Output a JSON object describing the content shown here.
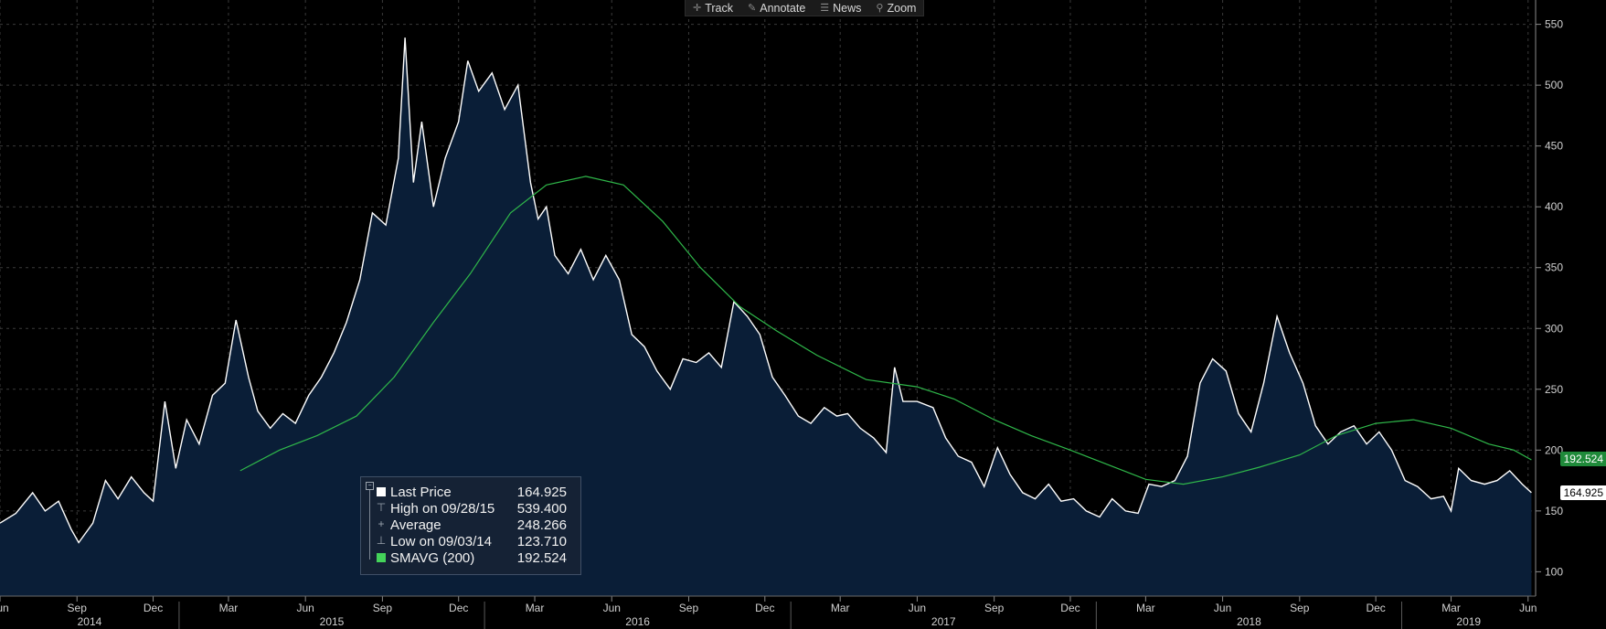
{
  "toolbar": {
    "items": [
      {
        "label": "Track",
        "icon": "crosshair-icon"
      },
      {
        "label": "Annotate",
        "icon": "pencil-icon"
      },
      {
        "label": "News",
        "icon": "news-icon"
      },
      {
        "label": "Zoom",
        "icon": "magnifier-icon"
      }
    ]
  },
  "legend": {
    "rows": [
      {
        "label": "Last Price",
        "value": "164.925",
        "mark": "white-square"
      },
      {
        "label": "High on 09/28/15",
        "value": "539.400",
        "mark": "high-glyph"
      },
      {
        "label": "Average",
        "value": "248.266",
        "mark": "average-glyph"
      },
      {
        "label": "Low on 09/03/14",
        "value": "123.710",
        "mark": "low-glyph"
      },
      {
        "label": "SMAVG (200)",
        "value": "192.524",
        "mark": "green-square"
      }
    ]
  },
  "tags": {
    "sma": {
      "value": "192.524",
      "color": "#1f8a3a"
    },
    "last": {
      "value": "164.925",
      "color": "#ffffff"
    }
  },
  "chart_data": {
    "type": "area",
    "ylim": [
      80,
      570
    ],
    "yticks": [
      100,
      150,
      200,
      250,
      300,
      350,
      400,
      450,
      500,
      550
    ],
    "grid": true,
    "x_month_labels": [
      {
        "label": "Jun",
        "date": "2014-06-01"
      },
      {
        "label": "Sep",
        "date": "2014-09-01"
      },
      {
        "label": "Dec",
        "date": "2014-12-01"
      },
      {
        "label": "Mar",
        "date": "2015-03-01"
      },
      {
        "label": "Jun",
        "date": "2015-06-01"
      },
      {
        "label": "Sep",
        "date": "2015-09-01"
      },
      {
        "label": "Dec",
        "date": "2015-12-01"
      },
      {
        "label": "Mar",
        "date": "2016-03-01"
      },
      {
        "label": "Jun",
        "date": "2016-06-01"
      },
      {
        "label": "Sep",
        "date": "2016-09-01"
      },
      {
        "label": "Dec",
        "date": "2016-12-01"
      },
      {
        "label": "Mar",
        "date": "2017-03-01"
      },
      {
        "label": "Jun",
        "date": "2017-06-01"
      },
      {
        "label": "Sep",
        "date": "2017-09-01"
      },
      {
        "label": "Dec",
        "date": "2017-12-01"
      },
      {
        "label": "Mar",
        "date": "2018-03-01"
      },
      {
        "label": "Jun",
        "date": "2018-06-01"
      },
      {
        "label": "Sep",
        "date": "2018-09-01"
      },
      {
        "label": "Dec",
        "date": "2018-12-01"
      },
      {
        "label": "Mar",
        "date": "2019-03-01"
      },
      {
        "label": "Jun",
        "date": "2019-06-01"
      }
    ],
    "x_year_labels": [
      "2014",
      "2015",
      "2016",
      "2017",
      "2018",
      "2019"
    ],
    "series": [
      {
        "name": "Last Price",
        "color": "#ffffff",
        "fill": "#0a1e37",
        "points": [
          [
            "2014-06-01",
            140
          ],
          [
            "2014-06-20",
            148
          ],
          [
            "2014-07-10",
            165
          ],
          [
            "2014-07-25",
            150
          ],
          [
            "2014-08-10",
            158
          ],
          [
            "2014-08-25",
            135
          ],
          [
            "2014-09-03",
            124
          ],
          [
            "2014-09-20",
            140
          ],
          [
            "2014-10-05",
            175
          ],
          [
            "2014-10-20",
            160
          ],
          [
            "2014-11-05",
            178
          ],
          [
            "2014-11-20",
            165
          ],
          [
            "2014-12-01",
            158
          ],
          [
            "2014-12-15",
            240
          ],
          [
            "2014-12-28",
            185
          ],
          [
            "2015-01-10",
            225
          ],
          [
            "2015-01-25",
            205
          ],
          [
            "2015-02-10",
            245
          ],
          [
            "2015-02-25",
            255
          ],
          [
            "2015-03-10",
            307
          ],
          [
            "2015-03-25",
            260
          ],
          [
            "2015-04-05",
            232
          ],
          [
            "2015-04-20",
            218
          ],
          [
            "2015-05-05",
            230
          ],
          [
            "2015-05-20",
            222
          ],
          [
            "2015-06-05",
            245
          ],
          [
            "2015-06-20",
            260
          ],
          [
            "2015-07-05",
            280
          ],
          [
            "2015-07-20",
            305
          ],
          [
            "2015-08-05",
            340
          ],
          [
            "2015-08-20",
            395
          ],
          [
            "2015-09-05",
            385
          ],
          [
            "2015-09-20",
            440
          ],
          [
            "2015-09-28",
            539
          ],
          [
            "2015-10-08",
            420
          ],
          [
            "2015-10-18",
            470
          ],
          [
            "2015-11-01",
            400
          ],
          [
            "2015-11-15",
            440
          ],
          [
            "2015-12-01",
            470
          ],
          [
            "2015-12-12",
            520
          ],
          [
            "2015-12-25",
            495
          ],
          [
            "2016-01-10",
            510
          ],
          [
            "2016-01-25",
            480
          ],
          [
            "2016-02-10",
            500
          ],
          [
            "2016-02-25",
            420
          ],
          [
            "2016-03-05",
            390
          ],
          [
            "2016-03-15",
            400
          ],
          [
            "2016-03-25",
            360
          ],
          [
            "2016-04-10",
            345
          ],
          [
            "2016-04-25",
            365
          ],
          [
            "2016-05-10",
            340
          ],
          [
            "2016-05-25",
            360
          ],
          [
            "2016-06-10",
            340
          ],
          [
            "2016-06-25",
            295
          ],
          [
            "2016-07-10",
            285
          ],
          [
            "2016-07-25",
            265
          ],
          [
            "2016-08-10",
            250
          ],
          [
            "2016-08-25",
            275
          ],
          [
            "2016-09-10",
            272
          ],
          [
            "2016-09-25",
            280
          ],
          [
            "2016-10-10",
            268
          ],
          [
            "2016-10-25",
            322
          ],
          [
            "2016-11-10",
            310
          ],
          [
            "2016-11-25",
            295
          ],
          [
            "2016-12-10",
            260
          ],
          [
            "2016-12-25",
            245
          ],
          [
            "2017-01-10",
            228
          ],
          [
            "2017-01-25",
            222
          ],
          [
            "2017-02-10",
            235
          ],
          [
            "2017-02-25",
            228
          ],
          [
            "2017-03-10",
            230
          ],
          [
            "2017-03-25",
            218
          ],
          [
            "2017-04-10",
            210
          ],
          [
            "2017-04-25",
            198
          ],
          [
            "2017-05-05",
            268
          ],
          [
            "2017-05-15",
            240
          ],
          [
            "2017-06-01",
            240
          ],
          [
            "2017-06-20",
            235
          ],
          [
            "2017-07-05",
            210
          ],
          [
            "2017-07-20",
            195
          ],
          [
            "2017-08-05",
            190
          ],
          [
            "2017-08-20",
            170
          ],
          [
            "2017-09-05",
            202
          ],
          [
            "2017-09-20",
            180
          ],
          [
            "2017-10-05",
            165
          ],
          [
            "2017-10-20",
            160
          ],
          [
            "2017-11-05",
            172
          ],
          [
            "2017-11-20",
            158
          ],
          [
            "2017-12-05",
            160
          ],
          [
            "2017-12-20",
            150
          ],
          [
            "2018-01-05",
            145
          ],
          [
            "2018-01-20",
            160
          ],
          [
            "2018-02-05",
            150
          ],
          [
            "2018-02-20",
            148
          ],
          [
            "2018-03-05",
            172
          ],
          [
            "2018-03-20",
            170
          ],
          [
            "2018-04-05",
            175
          ],
          [
            "2018-04-20",
            195
          ],
          [
            "2018-05-05",
            255
          ],
          [
            "2018-05-20",
            275
          ],
          [
            "2018-06-05",
            265
          ],
          [
            "2018-06-20",
            230
          ],
          [
            "2018-07-05",
            215
          ],
          [
            "2018-07-20",
            255
          ],
          [
            "2018-08-05",
            310
          ],
          [
            "2018-08-20",
            280
          ],
          [
            "2018-09-05",
            255
          ],
          [
            "2018-09-20",
            220
          ],
          [
            "2018-10-05",
            205
          ],
          [
            "2018-10-20",
            215
          ],
          [
            "2018-11-05",
            220
          ],
          [
            "2018-11-20",
            205
          ],
          [
            "2018-12-05",
            215
          ],
          [
            "2018-12-20",
            200
          ],
          [
            "2019-01-05",
            175
          ],
          [
            "2019-01-20",
            170
          ],
          [
            "2019-02-05",
            160
          ],
          [
            "2019-02-20",
            162
          ],
          [
            "2019-03-01",
            150
          ],
          [
            "2019-03-10",
            185
          ],
          [
            "2019-03-25",
            175
          ],
          [
            "2019-04-10",
            172
          ],
          [
            "2019-04-25",
            175
          ],
          [
            "2019-05-10",
            183
          ],
          [
            "2019-05-25",
            172
          ],
          [
            "2019-06-05",
            165
          ]
        ]
      },
      {
        "name": "SMAVG (200)",
        "color": "#2fb84a",
        "points": [
          [
            "2015-03-15",
            183
          ],
          [
            "2015-05-01",
            200
          ],
          [
            "2015-06-15",
            212
          ],
          [
            "2015-08-01",
            228
          ],
          [
            "2015-09-15",
            260
          ],
          [
            "2015-11-01",
            305
          ],
          [
            "2015-12-15",
            345
          ],
          [
            "2016-02-01",
            395
          ],
          [
            "2016-03-15",
            418
          ],
          [
            "2016-05-01",
            425
          ],
          [
            "2016-06-15",
            418
          ],
          [
            "2016-08-01",
            388
          ],
          [
            "2016-09-15",
            350
          ],
          [
            "2016-11-01",
            318
          ],
          [
            "2016-12-15",
            298
          ],
          [
            "2017-02-01",
            278
          ],
          [
            "2017-04-01",
            258
          ],
          [
            "2017-06-01",
            252
          ],
          [
            "2017-07-15",
            242
          ],
          [
            "2017-09-01",
            225
          ],
          [
            "2017-10-15",
            212
          ],
          [
            "2017-12-01",
            200
          ],
          [
            "2018-01-15",
            188
          ],
          [
            "2018-03-01",
            176
          ],
          [
            "2018-04-15",
            172
          ],
          [
            "2018-06-01",
            178
          ],
          [
            "2018-07-15",
            186
          ],
          [
            "2018-09-01",
            196
          ],
          [
            "2018-10-15",
            212
          ],
          [
            "2018-12-01",
            222
          ],
          [
            "2019-01-15",
            225
          ],
          [
            "2019-03-01",
            218
          ],
          [
            "2019-04-15",
            205
          ],
          [
            "2019-05-15",
            200
          ],
          [
            "2019-06-05",
            192
          ]
        ]
      }
    ]
  }
}
